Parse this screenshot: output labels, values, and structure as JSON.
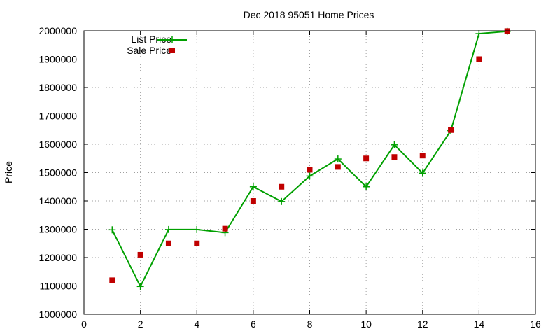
{
  "colors": {
    "list_price": "#00a000",
    "sale_price": "#c00000"
  },
  "chart_data": {
    "type": "line",
    "title": "Dec 2018 95051 Home Prices",
    "xlabel": "",
    "ylabel": "Price",
    "xlim": [
      0,
      16
    ],
    "ylim": [
      1000000,
      2000000
    ],
    "xticks": [
      0,
      2,
      4,
      6,
      8,
      10,
      12,
      14,
      16
    ],
    "yticks": [
      1000000,
      1100000,
      1200000,
      1300000,
      1400000,
      1500000,
      1600000,
      1700000,
      1800000,
      1900000,
      2000000
    ],
    "grid": true,
    "legend_position": "top-left",
    "series": [
      {
        "name": "List Price",
        "style": "line-plus",
        "x": [
          1,
          2,
          3,
          4,
          5,
          6,
          7,
          8,
          9,
          10,
          11,
          12,
          13,
          14,
          15
        ],
        "y": [
          1298000,
          1098000,
          1299000,
          1299000,
          1288000,
          1450000,
          1398000,
          1488000,
          1548000,
          1450000,
          1598000,
          1498000,
          1648000,
          1990000,
          1998000
        ]
      },
      {
        "name": "Sale Price",
        "style": "square-points",
        "x": [
          1,
          2,
          3,
          4,
          5,
          6,
          7,
          8,
          9,
          10,
          11,
          12,
          13,
          14,
          15
        ],
        "y": [
          1120000,
          1210000,
          1250000,
          1250000,
          1302000,
          1400000,
          1450000,
          1510000,
          1520000,
          1550000,
          1555000,
          1560000,
          1650000,
          1900000,
          1999000
        ]
      }
    ]
  }
}
